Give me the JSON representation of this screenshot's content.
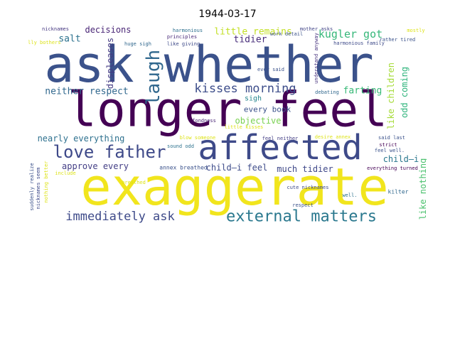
{
  "title": "1944-03-17",
  "words": [
    {
      "text": "exaggerate",
      "color": "#f1e51d"
    },
    {
      "text": "longer feel",
      "color": "#440154"
    },
    {
      "text": "ask whether",
      "color": "#3b528b"
    },
    {
      "text": "affected",
      "color": "#3e4a89"
    },
    {
      "text": "laugh",
      "color": "#31688e"
    },
    {
      "text": "love father",
      "color": "#3e4989"
    },
    {
      "text": "external matters",
      "color": "#2a788e"
    },
    {
      "text": "immediately ask",
      "color": "#3e4a89"
    },
    {
      "text": "kisses morning",
      "color": "#3d4d8a"
    },
    {
      "text": "kugler got",
      "color": "#35b779"
    },
    {
      "text": "little remains",
      "color": "#c2df23"
    },
    {
      "text": "decisions",
      "color": "#482475"
    },
    {
      "text": "salt",
      "color": "#2c728e"
    },
    {
      "text": "tidier",
      "color": "#472c7a"
    },
    {
      "text": "neither respect",
      "color": "#31688e"
    },
    {
      "text": "farting",
      "color": "#38b977"
    },
    {
      "text": "like children",
      "color": "#a5db36"
    },
    {
      "text": "odd coming",
      "color": "#2fb47c"
    },
    {
      "text": "objective",
      "color": "#7ad151"
    },
    {
      "text": "every book",
      "color": "#3b528b"
    },
    {
      "text": "nearly everything",
      "color": "#2d708e"
    },
    {
      "text": "approve every",
      "color": "#433e85"
    },
    {
      "text": "child—i feel",
      "color": "#3e4c8a"
    },
    {
      "text": "much tidier",
      "color": "#3f4889"
    },
    {
      "text": "child—i",
      "color": "#2a778e"
    },
    {
      "text": "like nothing",
      "color": "#4ac16d"
    },
    {
      "text": "displeases",
      "color": "#443a83"
    },
    {
      "text": "sigh",
      "color": "#25858e"
    },
    {
      "text": "nicknames",
      "color": "#453781"
    },
    {
      "text": "harmonious",
      "color": "#2d708e"
    },
    {
      "text": "really bothers",
      "color": "#dde318"
    },
    {
      "text": "huge sigh",
      "color": "#31688e"
    },
    {
      "text": "like giving",
      "color": "#3e4a89"
    },
    {
      "text": "principles",
      "color": "#482878"
    },
    {
      "text": "work detail",
      "color": "#3b528b"
    },
    {
      "text": "mother asks",
      "color": "#414487"
    },
    {
      "text": "mostly",
      "color": "#dde318"
    },
    {
      "text": "rather tired",
      "color": "#3b528b"
    },
    {
      "text": "harmonious family",
      "color": "#3e4a89"
    },
    {
      "text": "understand anyway",
      "color": "#46327e"
    },
    {
      "text": "ever said",
      "color": "#3b528b"
    },
    {
      "text": "debating",
      "color": "#31688e"
    },
    {
      "text": "fondness",
      "color": "#482475"
    },
    {
      "text": "feel neither",
      "color": "#433e85"
    },
    {
      "text": "said last",
      "color": "#3b528b"
    },
    {
      "text": "strict",
      "color": "#440154"
    },
    {
      "text": "feel well.",
      "color": "#3b528b"
    },
    {
      "text": "annex breathed",
      "color": "#3b528b"
    },
    {
      "text": "everything turned",
      "color": "#440154"
    },
    {
      "text": "cute nicknames",
      "color": "#3e4a89"
    },
    {
      "text": "kilter",
      "color": "#31688e"
    },
    {
      "text": "well.",
      "color": "#2c728e"
    },
    {
      "text": "respect",
      "color": "#3b528b"
    },
    {
      "text": "suddenly realize",
      "color": "#3b528b"
    },
    {
      "text": "nothing better",
      "color": "#dde318"
    },
    {
      "text": "nicknames seem",
      "color": "#3e4a89"
    },
    {
      "text": "breathed",
      "color": "#dde318"
    },
    {
      "text": "sound odd",
      "color": "#2c728e"
    },
    {
      "text": "include",
      "color": "#dde318"
    },
    {
      "text": "little kisses",
      "color": "#dde318"
    },
    {
      "text": "blow someone",
      "color": "#dde318"
    },
    {
      "text": "desire annex",
      "color": "#dde318"
    }
  ]
}
